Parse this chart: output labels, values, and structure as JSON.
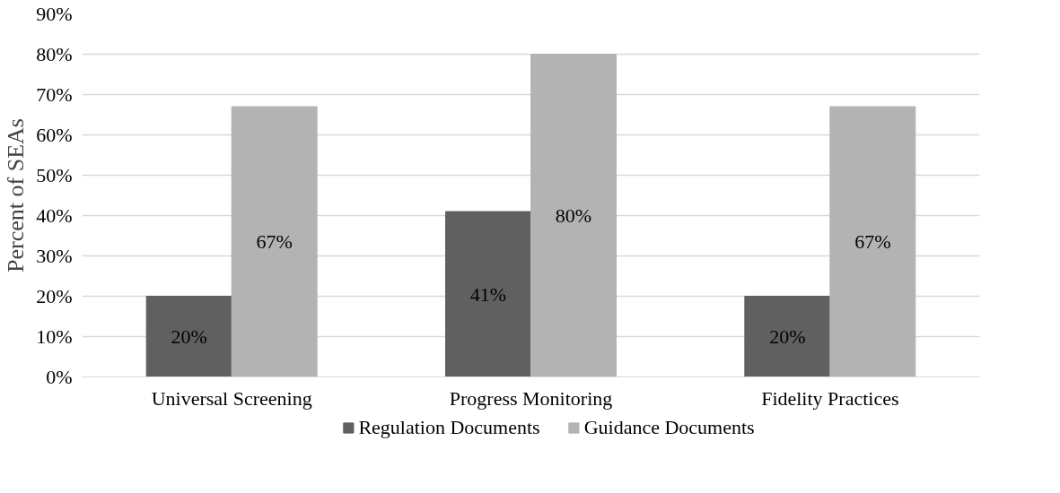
{
  "chart_data": {
    "type": "bar",
    "ylabel": "Percent of SEAs",
    "categories": [
      "Universal Screening",
      "Progress Monitoring",
      "Fidelity Practices"
    ],
    "series": [
      {
        "name": "Regulation Documents",
        "color": "#606060",
        "values": [
          20,
          41,
          20
        ],
        "value_labels": [
          "20%",
          "41%",
          "20%"
        ]
      },
      {
        "name": "Guidance Documents",
        "color": "#b3b3b3",
        "values": [
          67,
          80,
          67
        ],
        "value_labels": [
          "67%",
          "80%",
          "67%"
        ]
      }
    ],
    "ylim": [
      0,
      90
    ],
    "yticks": [
      {
        "value": 0,
        "label": "0%"
      },
      {
        "value": 10,
        "label": "10%"
      },
      {
        "value": 20,
        "label": "20%"
      },
      {
        "value": 30,
        "label": "30%"
      },
      {
        "value": 40,
        "label": "40%"
      },
      {
        "value": 50,
        "label": "50%"
      },
      {
        "value": 60,
        "label": "60%"
      },
      {
        "value": 70,
        "label": "70%"
      },
      {
        "value": 80,
        "label": "80%"
      },
      {
        "value": 90,
        "label": "90%"
      }
    ],
    "grid": "y",
    "legend": "bottom"
  }
}
